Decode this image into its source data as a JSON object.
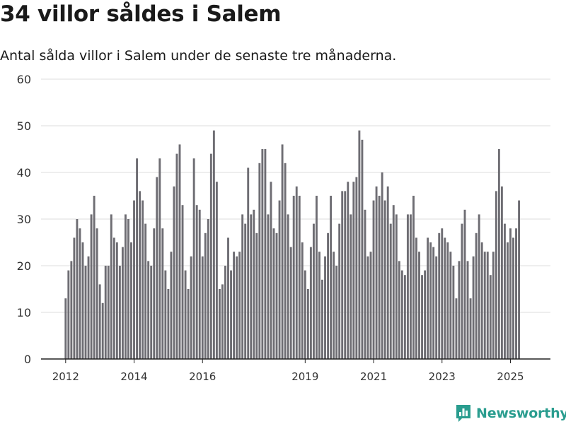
{
  "title": "34 villor såldes i Salem",
  "subtitle": "Antal sålda villor i Salem under de senaste tre månaderna.",
  "brand": {
    "name": "Newsworthy",
    "icon": "newsworthy-logo-icon",
    "color": "#2a9d8f"
  },
  "colors": {
    "bar": "#6e6d73",
    "highlight": "#1a9c94",
    "grid": "#dcdcdc",
    "axis": "#222222"
  },
  "chart_data": {
    "type": "bar",
    "title": "34 villor såldes i Salem",
    "subtitle": "Antal sålda villor i Salem under de senaste tre månaderna.",
    "xlabel": "",
    "ylabel": "",
    "ylim": [
      0,
      60
    ],
    "yticks": [
      0,
      10,
      20,
      30,
      40,
      50,
      60
    ],
    "xticks": [
      {
        "label": "2012",
        "index": 0
      },
      {
        "label": "2014",
        "index": 24
      },
      {
        "label": "2016",
        "index": 48
      },
      {
        "label": "2019",
        "index": 84
      },
      {
        "label": "2021",
        "index": 108
      },
      {
        "label": "2023",
        "index": 132
      },
      {
        "label": "2025",
        "index": 156
      }
    ],
    "start": "2012-01",
    "interval": "month",
    "grid": true,
    "legend": "none",
    "highlight": {
      "index": 160,
      "label": "34"
    },
    "values": [
      13,
      19,
      21,
      26,
      30,
      28,
      25,
      20,
      22,
      31,
      35,
      28,
      16,
      12,
      20,
      20,
      31,
      26,
      25,
      20,
      24,
      31,
      30,
      25,
      34,
      43,
      36,
      34,
      29,
      21,
      20,
      28,
      39,
      43,
      28,
      19,
      15,
      23,
      37,
      44,
      46,
      33,
      19,
      15,
      22,
      43,
      33,
      32,
      22,
      27,
      30,
      44,
      49,
      38,
      15,
      16,
      20,
      26,
      19,
      23,
      22,
      23,
      31,
      29,
      41,
      31,
      32,
      27,
      42,
      45,
      45,
      31,
      38,
      28,
      27,
      34,
      46,
      42,
      31,
      24,
      35,
      37,
      35,
      25,
      19,
      15,
      24,
      29,
      35,
      23,
      17,
      22,
      27,
      35,
      23,
      20,
      29,
      36,
      36,
      38,
      31,
      38,
      39,
      49,
      47,
      32,
      22,
      23,
      34,
      37,
      35,
      40,
      34,
      37,
      29,
      33,
      31,
      21,
      19,
      18,
      31,
      31,
      35,
      26,
      23,
      18,
      19,
      26,
      25,
      24,
      22,
      27,
      28,
      26,
      25,
      23,
      20,
      13,
      21,
      29,
      32,
      21,
      13,
      22,
      27,
      31,
      25,
      23,
      23,
      18,
      23,
      36,
      45,
      37,
      29,
      25,
      28,
      26,
      28,
      34
    ]
  }
}
